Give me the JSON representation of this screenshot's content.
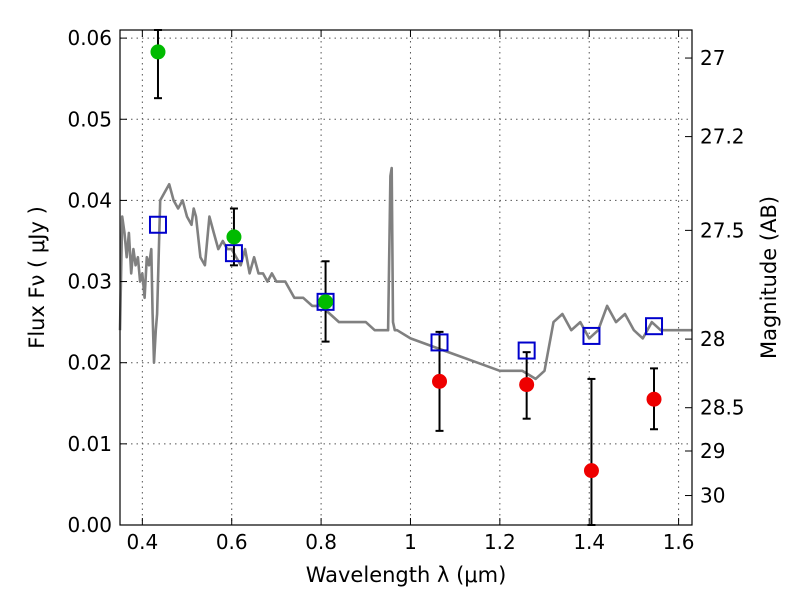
{
  "chart_data": {
    "type": "scatter",
    "xlabel": "Wavelength  λ (μm)",
    "ylabel": "Flux  Fν  ( μJy )",
    "y2label": "Magnitude (AB)",
    "xlim": [
      0.35,
      1.63
    ],
    "ylim": [
      0.0,
      0.061
    ],
    "x_ticks": [
      "0.4",
      "0.6",
      "0.8",
      "1",
      "1.2",
      "1.4",
      "1.6"
    ],
    "x_tick_values": [
      0.4,
      0.6,
      0.8,
      1.0,
      1.2,
      1.4,
      1.6
    ],
    "y_ticks": [
      "0.00",
      "0.01",
      "0.02",
      "0.03",
      "0.04",
      "0.05",
      "0.06"
    ],
    "y_tick_values": [
      0.0,
      0.01,
      0.02,
      0.03,
      0.04,
      0.05,
      0.06
    ],
    "mag_ticks": [
      {
        "label": "27",
        "value": 27
      },
      {
        "label": "27.2",
        "value": 27.2
      },
      {
        "label": "27.5",
        "value": 27.5
      },
      {
        "label": "28",
        "value": 28
      },
      {
        "label": "28.5",
        "value": 28.5
      },
      {
        "label": "29",
        "value": 29
      },
      {
        "label": "30",
        "value": 30
      }
    ],
    "grid": true,
    "colors": {
      "model": "#808080",
      "detection": "#00bb00",
      "upper": "#ee0000",
      "model_flux": "#0000cc",
      "errorbar": "#000000"
    },
    "model_spectrum": {
      "x": [
        0.35,
        0.355,
        0.36,
        0.365,
        0.37,
        0.375,
        0.38,
        0.385,
        0.39,
        0.395,
        0.4,
        0.405,
        0.41,
        0.415,
        0.42,
        0.423,
        0.426,
        0.43,
        0.433,
        0.44,
        0.45,
        0.46,
        0.47,
        0.48,
        0.49,
        0.5,
        0.51,
        0.515,
        0.52,
        0.53,
        0.54,
        0.55,
        0.56,
        0.57,
        0.58,
        0.59,
        0.6,
        0.61,
        0.62,
        0.63,
        0.64,
        0.65,
        0.66,
        0.67,
        0.68,
        0.69,
        0.7,
        0.72,
        0.74,
        0.76,
        0.78,
        0.8,
        0.82,
        0.84,
        0.86,
        0.88,
        0.9,
        0.92,
        0.94,
        0.95,
        0.955,
        0.958,
        0.961,
        0.965,
        0.97,
        1.0,
        1.05,
        1.1,
        1.15,
        1.2,
        1.25,
        1.28,
        1.3,
        1.32,
        1.34,
        1.36,
        1.38,
        1.4,
        1.42,
        1.44,
        1.46,
        1.48,
        1.5,
        1.52,
        1.54,
        1.56,
        1.58,
        1.6,
        1.63
      ],
      "y": [
        0.024,
        0.038,
        0.036,
        0.033,
        0.036,
        0.031,
        0.034,
        0.032,
        0.033,
        0.03,
        0.031,
        0.028,
        0.033,
        0.032,
        0.034,
        0.026,
        0.02,
        0.024,
        0.026,
        0.04,
        0.041,
        0.042,
        0.04,
        0.039,
        0.04,
        0.038,
        0.037,
        0.039,
        0.038,
        0.033,
        0.032,
        0.038,
        0.036,
        0.034,
        0.035,
        0.034,
        0.034,
        0.033,
        0.032,
        0.034,
        0.031,
        0.033,
        0.031,
        0.031,
        0.03,
        0.031,
        0.03,
        0.03,
        0.028,
        0.028,
        0.027,
        0.027,
        0.026,
        0.025,
        0.025,
        0.025,
        0.025,
        0.024,
        0.024,
        0.024,
        0.043,
        0.044,
        0.025,
        0.024,
        0.024,
        0.023,
        0.022,
        0.021,
        0.02,
        0.019,
        0.019,
        0.018,
        0.019,
        0.025,
        0.026,
        0.024,
        0.025,
        0.023,
        0.024,
        0.027,
        0.025,
        0.026,
        0.024,
        0.023,
        0.025,
        0.024,
        0.024,
        0.024,
        0.024
      ]
    },
    "model_fluxes": {
      "x": [
        0.435,
        0.605,
        0.81,
        1.065,
        1.26,
        1.405,
        1.545
      ],
      "y": [
        0.037,
        0.0335,
        0.0275,
        0.0225,
        0.0215,
        0.0233,
        0.0245
      ]
    },
    "detections": {
      "x": [
        0.435,
        0.605,
        0.81
      ],
      "y": [
        0.0583,
        0.0355,
        0.0275
      ],
      "err_low": [
        0.0526,
        0.032,
        0.0226
      ],
      "err_high": [
        0.061,
        0.039,
        0.0325
      ]
    },
    "upper_limits": {
      "x": [
        1.065,
        1.26,
        1.405,
        1.545
      ],
      "y": [
        0.0177,
        0.0173,
        0.0067,
        0.0155
      ],
      "err_low": [
        0.0116,
        0.0131,
        0.0,
        0.0118
      ],
      "err_high": [
        0.0238,
        0.0213,
        0.018,
        0.0193
      ]
    }
  }
}
